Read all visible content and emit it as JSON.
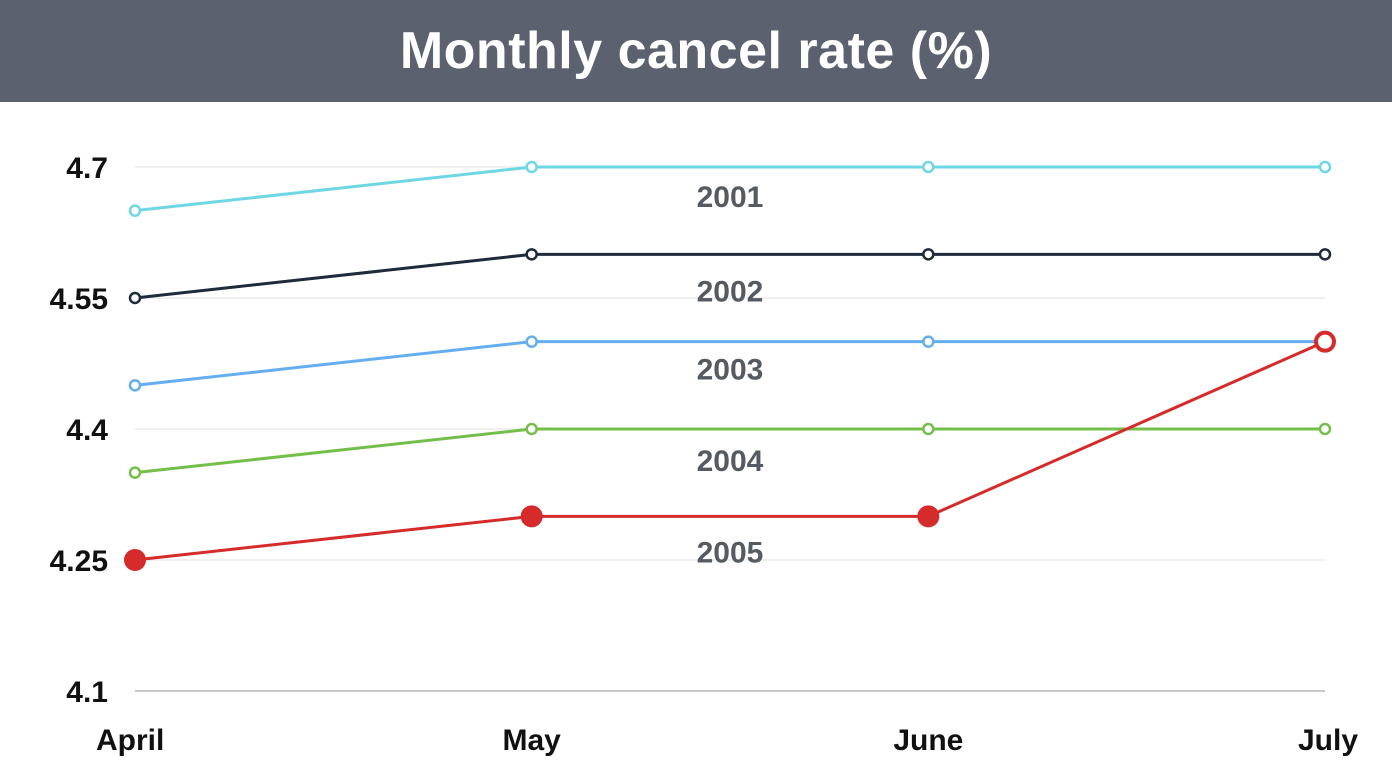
{
  "chart_data": {
    "type": "line",
    "title": "Monthly cancel rate (%)",
    "xlabel": "",
    "ylabel": "",
    "categories": [
      "April",
      "May",
      "June",
      "July"
    ],
    "ylim": [
      4.1,
      4.7
    ],
    "yticks": [
      "4.1",
      "4.25",
      "4.4",
      "4.55",
      "4.7"
    ],
    "grid": true,
    "series": [
      {
        "name": "2001",
        "color": "#6fd6e3",
        "values": [
          4.65,
          4.7,
          4.7,
          4.7
        ],
        "marker": "hollow"
      },
      {
        "name": "2002",
        "color": "#1f2a3a",
        "values": [
          4.55,
          4.6,
          4.6,
          4.6
        ],
        "marker": "hollow"
      },
      {
        "name": "2003",
        "color": "#64aef0",
        "values": [
          4.45,
          4.5,
          4.5,
          4.5
        ],
        "marker": "hollow"
      },
      {
        "name": "2004",
        "color": "#74bf4a",
        "values": [
          4.35,
          4.4,
          4.4,
          4.4
        ],
        "marker": "hollow"
      },
      {
        "name": "2005",
        "color": "#d62b2b",
        "values": [
          4.25,
          4.3,
          4.3,
          4.5
        ],
        "marker": "filled"
      }
    ]
  }
}
